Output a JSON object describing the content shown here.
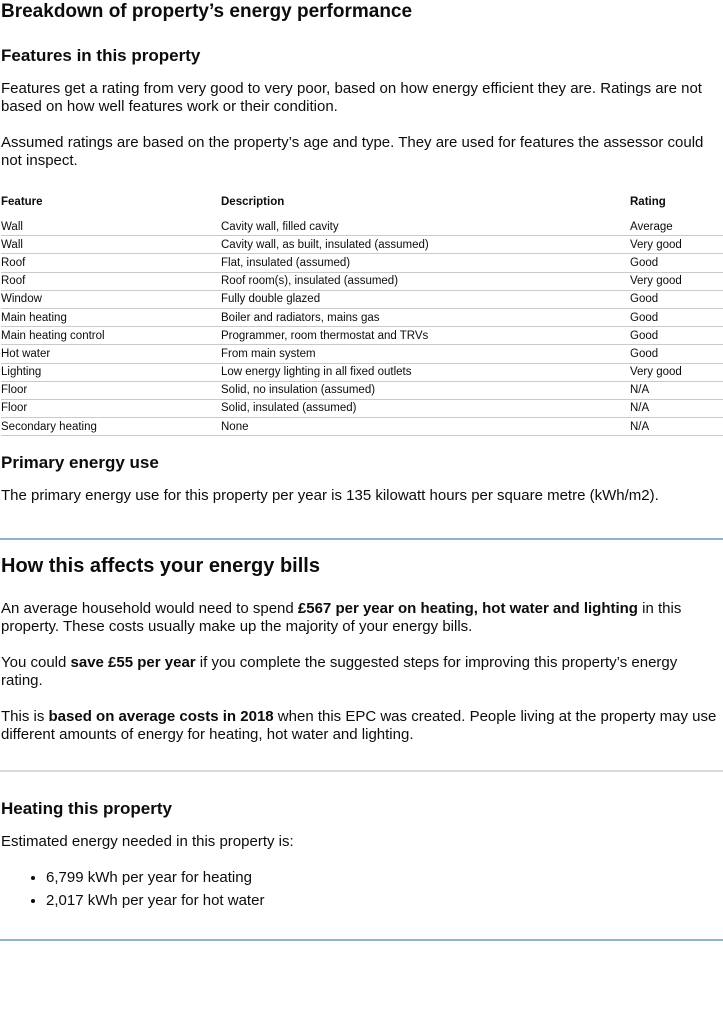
{
  "breakdown": {
    "title": "Breakdown of property’s energy performance",
    "features_heading": "Features in this property",
    "intro_1": "Features get a rating from very good to very poor, based on how energy efficient they are. Ratings are not based on how well features work or their condition.",
    "intro_2": "Assumed ratings are based on the property’s age and type. They are used for features the assessor could not inspect.",
    "table": {
      "headers": [
        "Feature",
        "Description",
        "Rating"
      ],
      "rows": [
        [
          "Wall",
          "Cavity wall, filled cavity",
          "Average"
        ],
        [
          "Wall",
          "Cavity wall, as built, insulated (assumed)",
          "Very good"
        ],
        [
          "Roof",
          "Flat, insulated (assumed)",
          "Good"
        ],
        [
          "Roof",
          "Roof room(s), insulated (assumed)",
          "Very good"
        ],
        [
          "Window",
          "Fully double glazed",
          "Good"
        ],
        [
          "Main heating",
          "Boiler and radiators, mains gas",
          "Good"
        ],
        [
          "Main heating control",
          "Programmer, room thermostat and TRVs",
          "Good"
        ],
        [
          "Hot water",
          "From main system",
          "Good"
        ],
        [
          "Lighting",
          "Low energy lighting in all fixed outlets",
          "Very good"
        ],
        [
          "Floor",
          "Solid, no insulation (assumed)",
          "N/A"
        ],
        [
          "Floor",
          "Solid, insulated (assumed)",
          "N/A"
        ],
        [
          "Secondary heating",
          "None",
          "N/A"
        ]
      ]
    },
    "primary_heading": "Primary energy use",
    "primary_text": "The primary energy use for this property per year is 135 kilowatt hours per square metre (kWh/m2)."
  },
  "bills": {
    "heading": "How this affects your energy bills",
    "p1": {
      "a": "An average household would need to spend ",
      "b": "£567 per year on heating, hot water and lighting",
      "c": " in this property. These costs usually make up the majority of your energy bills."
    },
    "p2": {
      "a": "You could ",
      "b": "save £55 per year",
      "c": " if you complete the suggested steps for improving this property’s energy rating."
    },
    "p3": {
      "a": "This is ",
      "b": "based on average costs in 2018",
      "c": " when this EPC was created. People living at the property may use different amounts of energy for heating, hot water and lighting."
    }
  },
  "heating": {
    "heading": "Heating this property",
    "intro": "Estimated energy needed in this property is:",
    "items": [
      "6,799 kWh per year for heating",
      "2,017 kWh per year for hot water"
    ]
  },
  "colors": {
    "blue_rule": "#8eb3cf",
    "grey_rule": "#d8dadb"
  }
}
